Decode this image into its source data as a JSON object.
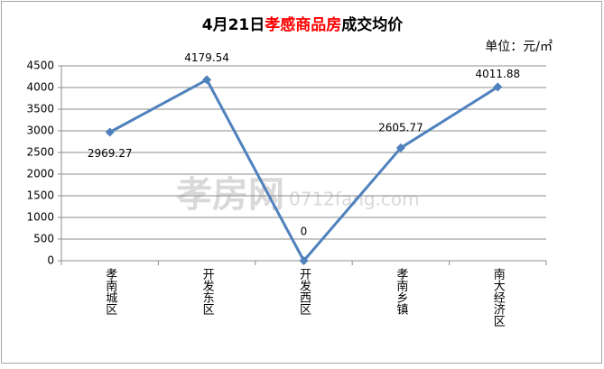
{
  "chart_data": {
    "type": "line",
    "title": {
      "prefix": "4月21日",
      "highlight": "孝感商品房",
      "suffix": "成交均价"
    },
    "title_highlight_color": "#ff0000",
    "unit_label": "单位：元/㎡",
    "watermark": [
      "孝房网",
      "0712fang.com"
    ],
    "categories": [
      "孝南城区",
      "开发东区",
      "开发西区",
      "孝南乡镇",
      "南大经济区"
    ],
    "series": [
      {
        "name": "成交均价",
        "color": "#4f81bd",
        "values": [
          2969.27,
          4179.54,
          0,
          2605.77,
          4011.88
        ]
      }
    ],
    "ylim": [
      0,
      4500
    ],
    "yticks": [
      0,
      500,
      1000,
      1500,
      2000,
      2500,
      3000,
      3500,
      4000,
      4500
    ],
    "grid": true
  }
}
